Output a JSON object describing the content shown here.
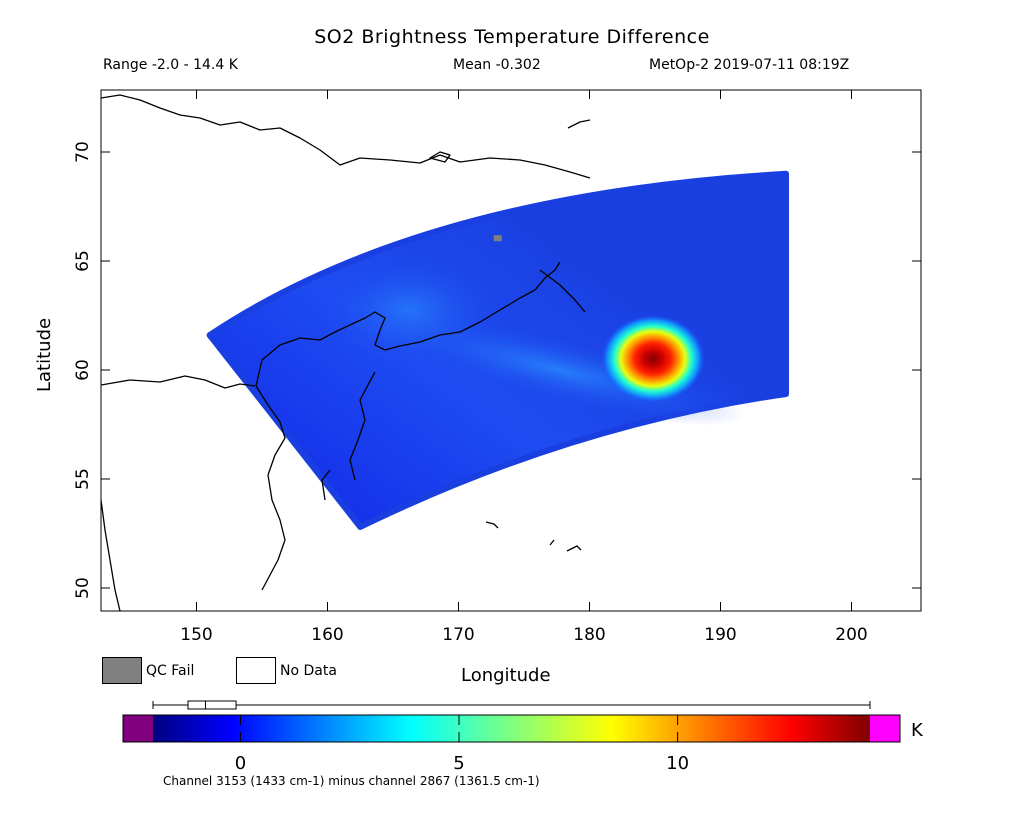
{
  "header": {
    "title": "SO2 Brightness Temperature Difference",
    "range": "Range -2.0 - 14.4 K",
    "mean": "Mean -0.302",
    "satellite": "MetOp-2 2019-07-11 08:19Z"
  },
  "legend": {
    "qc_fail": "QC Fail",
    "no_data": "No Data",
    "qc_fail_color": "#808080",
    "no_data_color": "#ffffff"
  },
  "colorbar": {
    "unit": "K",
    "tick_labels": [
      "0",
      "5",
      "10"
    ],
    "ticks": [
      0,
      5,
      10
    ],
    "min": -2.0,
    "max": 14.4,
    "underflow_color": "#800080",
    "overflow_color": "#ff00ff",
    "box_q1": -1.2,
    "box_median": -0.8,
    "box_q3": -0.1,
    "caption": "Channel 3153 (1433 cm-1) minus channel 2867 (1361.5 cm-1)"
  },
  "chart_data": {
    "type": "heatmap",
    "xlabel": "Longitude",
    "ylabel": "Latitude",
    "xlim": [
      143,
      205
    ],
    "ylim": [
      49,
      73
    ],
    "x_ticks": [
      150,
      160,
      170,
      180,
      190,
      200
    ],
    "y_ticks": [
      50,
      55,
      60,
      65,
      70
    ],
    "value_range": [
      -2.0,
      14.4
    ],
    "mean": -0.302,
    "plume_peak": {
      "lon": 185,
      "lat": 60.7,
      "value": 14.4
    },
    "qc_fail_pixel": {
      "lon": 173,
      "lat": 66
    },
    "swath_corners": [
      {
        "lon": 151,
        "lat": 61.6
      },
      {
        "lon": 195,
        "lat": 69
      },
      {
        "lon": 195,
        "lat": 58.9
      },
      {
        "lon": 162.5,
        "lat": 52.8
      }
    ]
  }
}
